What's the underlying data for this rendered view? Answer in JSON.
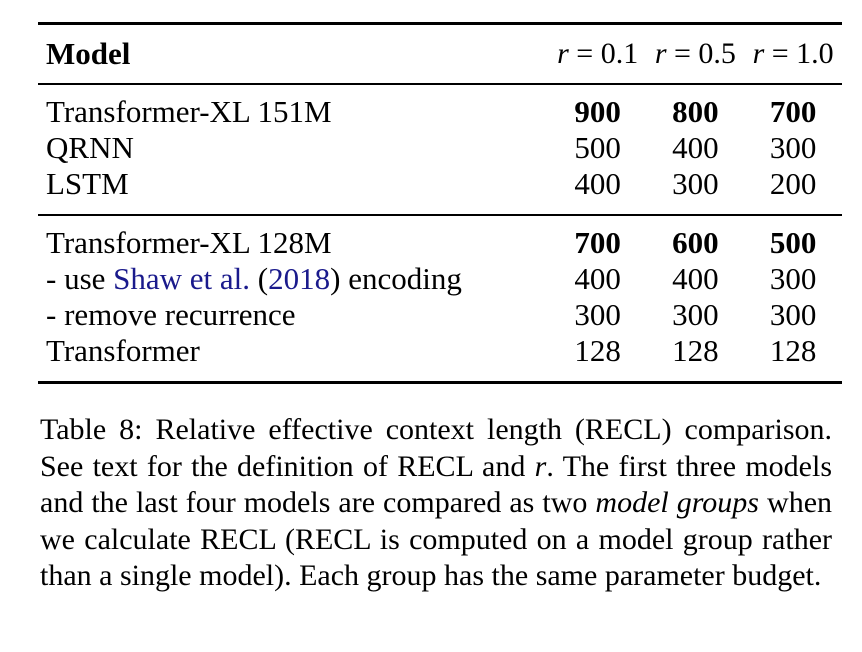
{
  "table": {
    "header": {
      "model": "Model",
      "cols": [
        {
          "var": "r",
          "eq": " = ",
          "val": "0.1"
        },
        {
          "var": "r",
          "eq": " = ",
          "val": "0.5"
        },
        {
          "var": "r",
          "eq": " = ",
          "val": "1.0"
        }
      ]
    },
    "group1": [
      {
        "model": "Transformer-XL 151M",
        "v1": "900",
        "v2": "800",
        "v3": "700"
      },
      {
        "model": "QRNN",
        "v1": "500",
        "v2": "400",
        "v3": "300"
      },
      {
        "model": "LSTM",
        "v1": "400",
        "v2": "300",
        "v3": "200"
      }
    ],
    "group2": [
      {
        "model": "Transformer-XL 128M",
        "v1": "700",
        "v2": "600",
        "v3": "500"
      },
      {
        "model_prefix": "- use ",
        "cite_author": "Shaw et al.",
        "cite_open": " (",
        "cite_year": "2018",
        "cite_close": ")",
        "model_suffix": " encoding",
        "v1": "400",
        "v2": "400",
        "v3": "300"
      },
      {
        "model": "- remove recurrence",
        "v1": "300",
        "v2": "300",
        "v3": "300"
      },
      {
        "model": "Transformer",
        "v1": "128",
        "v2": "128",
        "v3": "128"
      }
    ]
  },
  "caption": {
    "label": "Table 8:",
    "part1": " Relative effective context length (RECL) comparison. See text for the definition of RECL and ",
    "var": "r",
    "part2": ". The first three models and the last four models are compared as two ",
    "emph": "model groups",
    "part3": " when we calculate RECL (RECL is computed on a model group rather than a single model). Each group has the same parameter budget."
  }
}
